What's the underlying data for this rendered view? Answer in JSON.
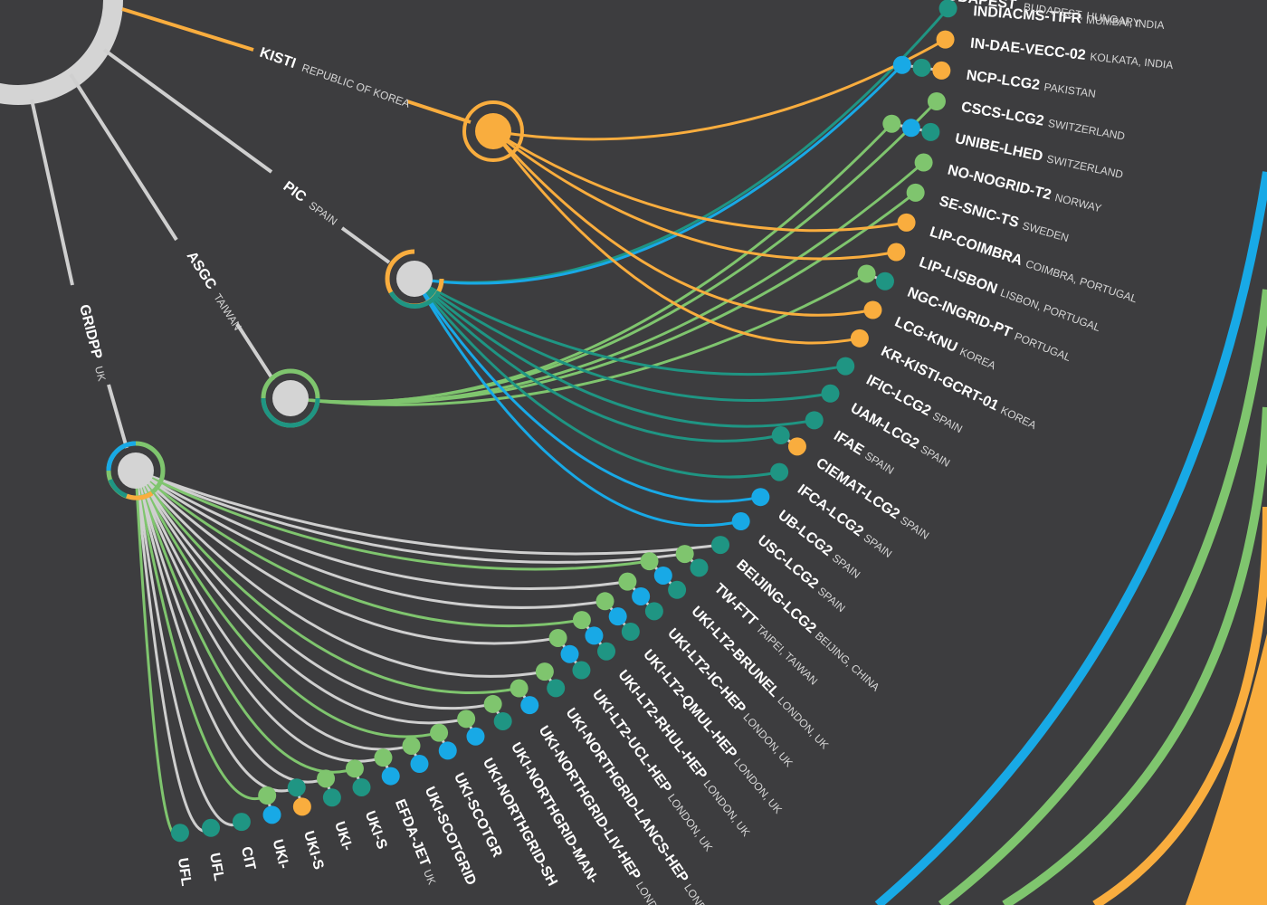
{
  "colors": {
    "background": "#3d3d3f",
    "spoke": "#cfcfcf",
    "orange": "#f9ad3e",
    "green": "#7fc56e",
    "teal": "#1f9583",
    "blue": "#18a9e6",
    "hub": "#d4d4d4"
  },
  "tier1": [
    {
      "name": "KISTI",
      "location": "REPUBLIC OF KOREA",
      "color": "orange"
    },
    {
      "name": "PIC",
      "location": "SPAIN",
      "color": "blue"
    },
    {
      "name": "ASGC",
      "location": "TAIWAN",
      "color": "green"
    },
    {
      "name": "GRIDPP",
      "location": "UK",
      "color": "mixed"
    }
  ],
  "right_sites": [
    {
      "name": "INDIACMS-TIFR",
      "location": "MUMBAI, INDIA",
      "dots": [
        "teal"
      ]
    },
    {
      "name": "IN-DAE-VECC-02",
      "location": "KOLKATA, INDIA",
      "dots": [
        "orange"
      ]
    },
    {
      "name": "NCP-LCG2",
      "location": "PAKISTAN",
      "dots": [
        "blue",
        "teal",
        "orange"
      ]
    },
    {
      "name": "CSCS-LCG2",
      "location": "SWITZERLAND",
      "dots": [
        "green"
      ]
    },
    {
      "name": "UNIBE-LHED",
      "location": "SWITZERLAND",
      "dots": [
        "green",
        "blue",
        "teal"
      ]
    },
    {
      "name": "NO-NOGRID-T2",
      "location": "NORWAY",
      "dots": [
        "green"
      ]
    },
    {
      "name": "SE-SNIC-TS",
      "location": "SWEDEN",
      "dots": [
        "green"
      ]
    },
    {
      "name": "LIP-COIMBRA",
      "location": "COIMBRA, PORTUGAL",
      "dots": [
        "orange"
      ]
    },
    {
      "name": "LIP-LISBON",
      "location": "LISBON, PORTUGAL",
      "dots": [
        "orange"
      ]
    },
    {
      "name": "NGC-INGRID-PT",
      "location": "PORTUGAL",
      "dots": [
        "green",
        "teal"
      ]
    },
    {
      "name": "LCG-KNU",
      "location": "KOREA",
      "dots": [
        "orange"
      ]
    },
    {
      "name": "KR-KISTI-GCRT-01",
      "location": "KOREA",
      "dots": [
        "orange"
      ]
    },
    {
      "name": "IFIC-LCG2",
      "location": "SPAIN",
      "dots": [
        "teal"
      ]
    },
    {
      "name": "UAM-LCG2",
      "location": "SPAIN",
      "dots": [
        "teal"
      ]
    },
    {
      "name": "IFAE",
      "location": "SPAIN",
      "dots": [
        "teal"
      ]
    },
    {
      "name": "CIEMAT-LCG2",
      "location": "SPAIN",
      "dots": [
        "teal",
        "orange"
      ]
    },
    {
      "name": "IFCA-LCG2",
      "location": "SPAIN",
      "dots": [
        "teal"
      ]
    },
    {
      "name": "UB-LCG2",
      "location": "SPAIN",
      "dots": [
        "blue"
      ]
    },
    {
      "name": "USC-LCG2",
      "location": "SPAIN",
      "dots": [
        "blue"
      ]
    },
    {
      "name": "BEIJING-LCG2",
      "location": "BEIJING, CHINA",
      "dots": [
        "teal"
      ]
    },
    {
      "name": "TW-FTT",
      "location": "TAIPEI, TAIWAN",
      "dots": [
        "green",
        "teal"
      ]
    },
    {
      "name": "UKI-LT2-BRUNEL",
      "location": "LONDON, UK",
      "dots": [
        "green",
        "blue",
        "teal"
      ]
    },
    {
      "name": "UKI-LT2-IC-HEP",
      "location": "LONDON, UK",
      "dots": [
        "green",
        "blue",
        "teal"
      ]
    },
    {
      "name": "UKI-LT2-QMUL-HEP",
      "location": "LONDON, UK",
      "dots": [
        "green",
        "blue",
        "teal"
      ]
    },
    {
      "name": "UKI-LT2-RHUL-HEP",
      "location": "LONDON, UK",
      "dots": [
        "green",
        "blue",
        "teal"
      ]
    },
    {
      "name": "UKI-LT2-UCL-HEP",
      "location": "LONDON, UK",
      "dots": [
        "green",
        "blue",
        "teal"
      ]
    },
    {
      "name": "UKI-NORTHGRID-LANCS-HEP",
      "location": "LONDON, UK",
      "dots": [
        "green",
        "teal"
      ]
    },
    {
      "name": "UKI-NORTHGRID-LIV-HEP",
      "location": "LONDON, UK",
      "dots": [
        "green",
        "blue"
      ]
    },
    {
      "name": "UKI-NORTHGRID-MAN-",
      "location": "",
      "dots": [
        "green",
        "teal"
      ]
    },
    {
      "name": "UKI-NORTHGRID-SH",
      "location": "",
      "dots": [
        "green",
        "blue"
      ]
    },
    {
      "name": "UKI-SCOTGR",
      "location": "",
      "dots": [
        "green",
        "blue"
      ]
    },
    {
      "name": "UKI-SCOTGRID",
      "location": "",
      "dots": [
        "green",
        "blue"
      ]
    },
    {
      "name": "EFDA-JET",
      "location": "UK",
      "dots": [
        "green",
        "blue"
      ]
    },
    {
      "name": "UKI-S",
      "location": "",
      "dots": [
        "green",
        "teal"
      ]
    },
    {
      "name": "UKI-",
      "location": "",
      "dots": [
        "green",
        "teal"
      ]
    },
    {
      "name": "UKI-S",
      "location": "",
      "dots": [
        "teal",
        "orange"
      ]
    },
    {
      "name": "UKI-",
      "location": "",
      "dots": [
        "green",
        "blue"
      ]
    },
    {
      "name": "CIT",
      "location": "",
      "dots": [
        "teal"
      ]
    },
    {
      "name": "UFL",
      "location": "",
      "dots": [
        "teal"
      ]
    },
    {
      "name": "UFL",
      "location": "",
      "dots": [
        "teal"
      ]
    }
  ],
  "top_partial": {
    "name": "BUDAPEST",
    "location": "BUDAPEST, HUNGARY"
  }
}
